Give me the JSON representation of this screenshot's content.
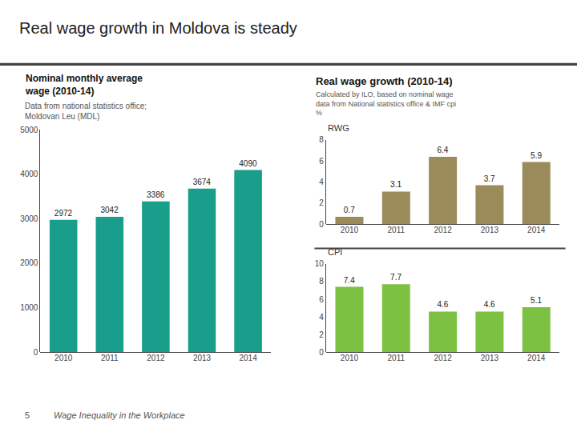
{
  "title": "Real wage growth in Moldova is steady",
  "annotations": [
    "Real wage growth (2010-14)",
    "Calculated by ILO, based on nominal wage\ndata from National statistics office & IMF cpi\n%",
    "5",
    "Wage Inequality in the Workplace"
  ],
  "chart_data": [
    {
      "type": "bar",
      "title": "Nominal monthly average\nwage (2010-14)",
      "subtitle": "Data from national statistics office;\nMoldovan Leu (MDL)",
      "categories": [
        "2010",
        "2011",
        "2012",
        "2013",
        "2014"
      ],
      "values": [
        2972,
        3042,
        3386,
        3674,
        4090
      ],
      "color": "#1A9E8C",
      "ylim": [
        0,
        5000
      ],
      "yticks": [
        0,
        1000,
        2000,
        3000,
        4000,
        5000
      ],
      "grid": false,
      "data_labels": true
    },
    {
      "type": "bar",
      "title": "RWG",
      "categories": [
        "2010",
        "2011",
        "2012",
        "2013",
        "2014"
      ],
      "values": [
        0.7,
        3.1,
        6.4,
        3.7,
        5.9
      ],
      "color": "#9B8B5A",
      "ylim": [
        0,
        8
      ],
      "yticks": [
        0,
        2,
        4,
        6,
        8
      ],
      "grid": false,
      "data_labels": true
    },
    {
      "type": "bar",
      "title": "CPI",
      "categories": [
        "2010",
        "2011",
        "2012",
        "2013",
        "2014"
      ],
      "values": [
        7.4,
        7.7,
        4.6,
        4.6,
        5.1
      ],
      "color": "#7DC142",
      "ylim": [
        0,
        10
      ],
      "yticks": [
        0,
        2,
        4,
        6,
        8,
        10
      ],
      "grid": false,
      "data_labels": true
    }
  ]
}
